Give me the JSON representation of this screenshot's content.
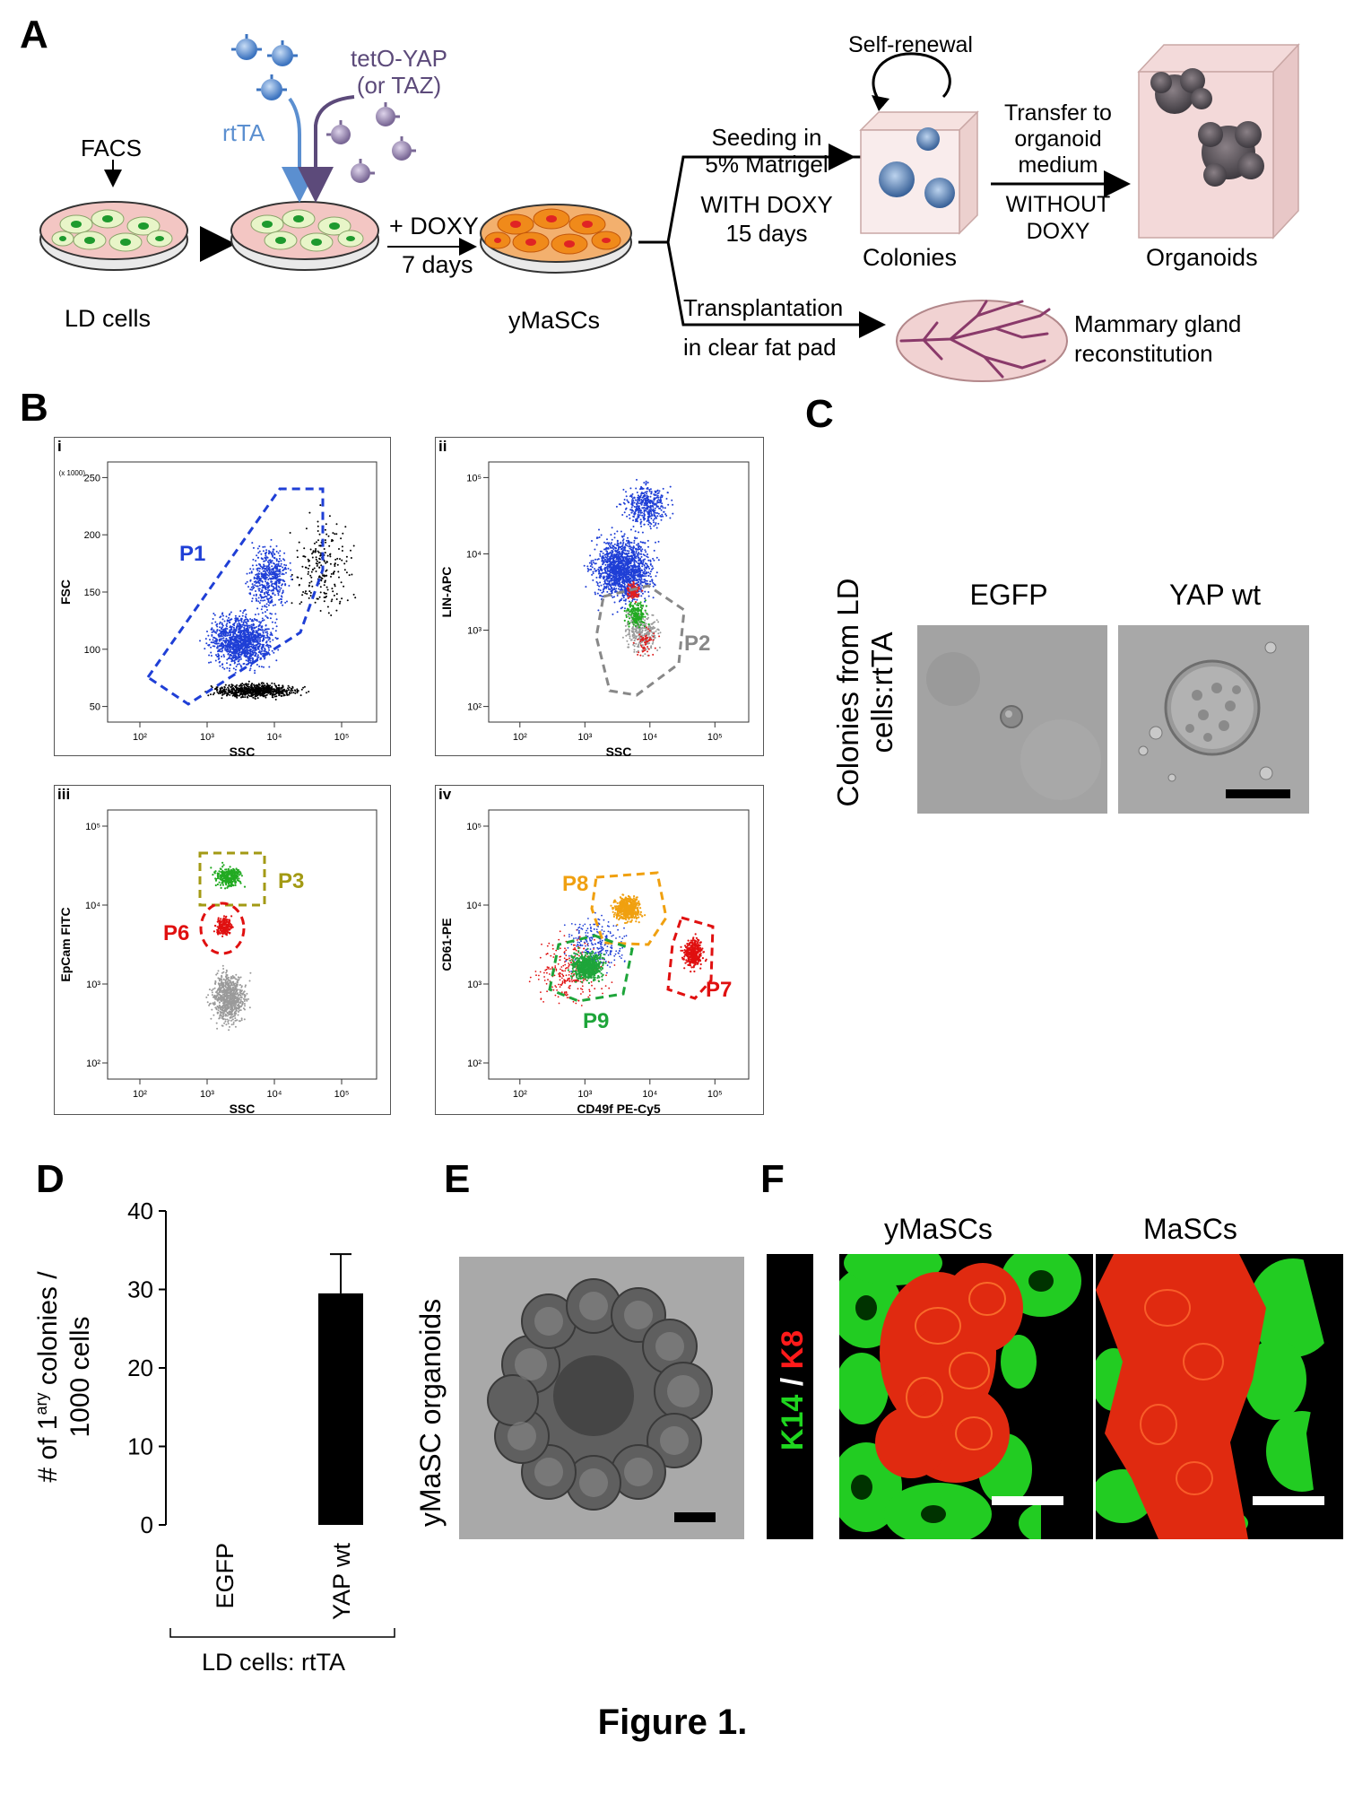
{
  "panels": {
    "a": "A",
    "b": "B",
    "c": "C",
    "d": "D",
    "e": "E",
    "f": "F"
  },
  "panel_a": {
    "facs": "FACS",
    "rtta": "rtTA",
    "teto_line1": "tetO-YAP",
    "teto_line2": "(or TAZ)",
    "plus_doxy": "+ DOXY",
    "seven_days": "7 days",
    "ld_cells": "LD cells",
    "ymascs": "yMaSCs",
    "seeding_1": "Seeding in",
    "seeding_2": "5% Matrigel",
    "seeding_3": "WITH DOXY",
    "seeding_4": "15 days",
    "self_renewal": "Self-renewal",
    "colonies": "Colonies",
    "transfer_1": "Transfer to",
    "transfer_2": "organoid",
    "transfer_3": "medium",
    "transfer_4": "WITHOUT",
    "transfer_5": "DOXY",
    "organoids": "Organoids",
    "transplant_1": "Transplantation",
    "transplant_2": "in clear fat pad",
    "mammary_1": "Mammary gland",
    "mammary_2": "reconstitution",
    "colors": {
      "rtta": "#5b8fd0",
      "teto": "#5c4a7a",
      "cell_green": "#1e9a2e",
      "cell_orange": "#f08a1a",
      "dish_pink": "#f3c6c3"
    }
  },
  "panel_b": {
    "i": {
      "label": "i",
      "x_axis": "SSC",
      "y_axis": "FSC",
      "y_scale": "(x 1000)",
      "x_ticks": [
        "10²",
        "10³",
        "10⁴",
        "10⁵"
      ],
      "y_ticks": [
        "250",
        "200",
        "150",
        "100",
        "50"
      ],
      "gates": [
        {
          "name": "P1",
          "color": "#1f3fd6"
        }
      ]
    },
    "ii": {
      "label": "ii",
      "x_axis": "SSC",
      "y_axis": "LIN-APC",
      "x_ticks": [
        "10²",
        "10³",
        "10⁴",
        "10⁵"
      ],
      "y_ticks": [
        "10⁵",
        "10⁴",
        "10³",
        "10²"
      ],
      "gates": [
        {
          "name": "P2",
          "color": "#888888"
        }
      ]
    },
    "iii": {
      "label": "iii",
      "x_axis": "SSC",
      "y_axis": "EpCam FITC",
      "x_ticks": [
        "10²",
        "10³",
        "10⁴",
        "10⁵"
      ],
      "y_ticks": [
        "10⁵",
        "10⁴",
        "10³",
        "10²"
      ],
      "gates": [
        {
          "name": "P3",
          "color": "#a39a14"
        },
        {
          "name": "P6",
          "color": "#e01010"
        }
      ]
    },
    "iv": {
      "label": "iv",
      "x_axis": "CD49f PE-Cy5",
      "y_axis": "CD61-PE",
      "x_ticks": [
        "10²",
        "10³",
        "10⁴",
        "10⁵"
      ],
      "y_ticks": [
        "10⁵",
        "10⁴",
        "10³",
        "10²"
      ],
      "gates": [
        {
          "name": "P8",
          "color": "#f0a010"
        },
        {
          "name": "P7",
          "color": "#e01010"
        },
        {
          "name": "P9",
          "color": "#1ea53a"
        }
      ]
    }
  },
  "panel_c": {
    "side_label_1": "Colonies from LD",
    "side_label_2": "cells:rtTA",
    "col1": "EGFP",
    "col2": "YAP wt"
  },
  "panel_e": {
    "side_label": "yMaSC organoids"
  },
  "panel_f": {
    "col1": "yMaSCs",
    "col2": "MaSCs",
    "stain_k14": "K14",
    "stain_slash": " / ",
    "stain_k8": "K8"
  },
  "chart_data": {
    "type": "bar",
    "categories": [
      "EGFP",
      "YAP wt"
    ],
    "values": [
      0,
      29.5
    ],
    "error": [
      0,
      5
    ],
    "ylabel_line1": "# of 1",
    "ylabel_sup": "ary",
    "ylabel_line1_end": " colonies /",
    "ylabel_line2": "1000 cells",
    "group_label": "LD cells: rtTA",
    "ylim": [
      0,
      40
    ],
    "y_ticks": [
      0,
      10,
      20,
      30,
      40
    ]
  },
  "caption": "Figure 1."
}
